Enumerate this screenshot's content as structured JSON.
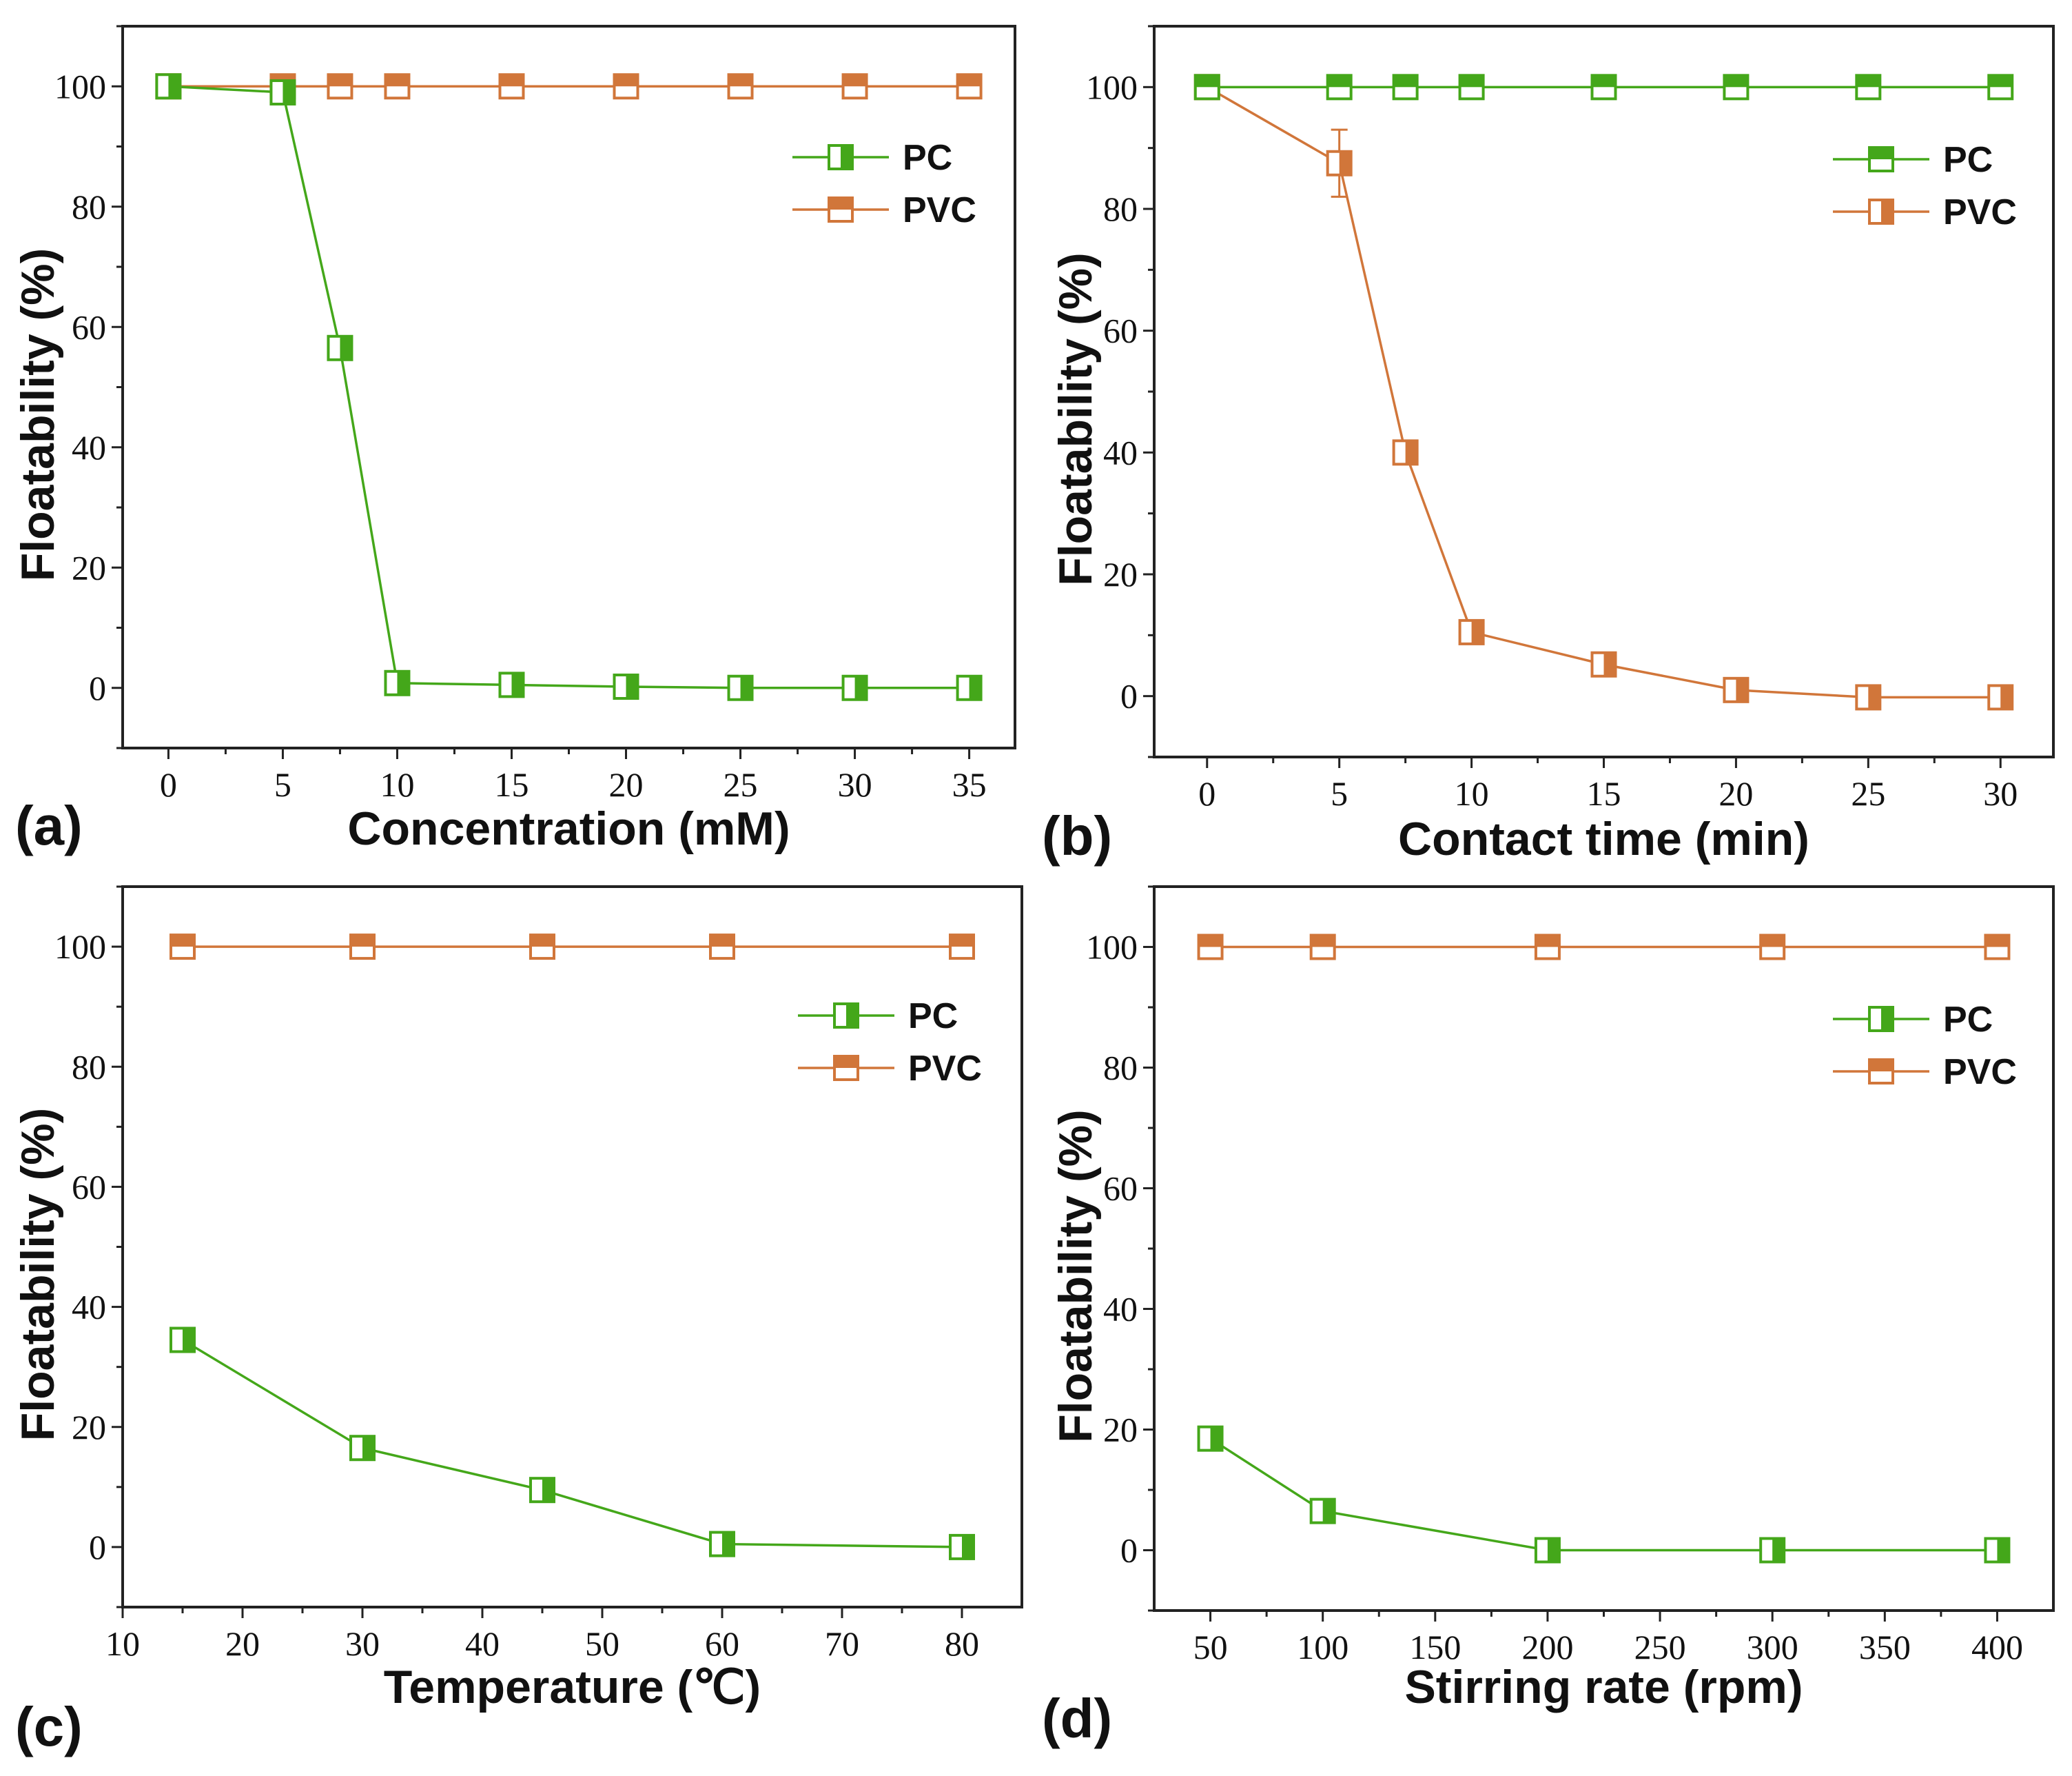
{
  "colors": {
    "pc": "#44a71a",
    "pvc": "#d1763a",
    "axis": "#222222",
    "background": "#ffffff"
  },
  "chart_data": [
    {
      "id": "a",
      "type": "line",
      "panel_label": "(a)",
      "xlabel": "Concentration (mM)",
      "ylabel": "Floatability (%)",
      "xlim": [
        -2,
        37
      ],
      "ylim": [
        -10,
        110
      ],
      "xticks": [
        0,
        5,
        10,
        15,
        20,
        25,
        30,
        35
      ],
      "yticks": [
        0,
        20,
        40,
        60,
        80,
        100
      ],
      "legend_position": "top-right",
      "legend_order": [
        "PC",
        "PVC"
      ],
      "series": [
        {
          "name": "PC",
          "marker": "half-left",
          "x": [
            0,
            5,
            7.5,
            10,
            15,
            20,
            25,
            30,
            35
          ],
          "y": [
            100,
            99,
            56.5,
            0.8,
            0.5,
            0.2,
            0,
            0,
            0
          ]
        },
        {
          "name": "PVC",
          "marker": "half-top",
          "x": [
            0,
            5,
            7.5,
            10,
            15,
            20,
            25,
            30,
            35
          ],
          "y": [
            100,
            100,
            100,
            100,
            100,
            100,
            100,
            100,
            100
          ]
        }
      ]
    },
    {
      "id": "b",
      "type": "line",
      "panel_label": "(b)",
      "xlabel": "Contact time (min)",
      "ylabel": "Floatability (%)",
      "xlim": [
        -2,
        32
      ],
      "ylim": [
        -10,
        110
      ],
      "xticks": [
        0,
        5,
        10,
        15,
        20,
        25,
        30
      ],
      "yticks": [
        0,
        20,
        40,
        60,
        80,
        100
      ],
      "legend_position": "top-right",
      "legend_order": [
        "PC",
        "PVC"
      ],
      "series": [
        {
          "name": "PVC",
          "marker": "half-left",
          "x": [
            0,
            5,
            7.5,
            10,
            15,
            20,
            25,
            30
          ],
          "y": [
            100,
            87.5,
            40,
            10.5,
            5.2,
            1,
            -0.2,
            -0.2
          ],
          "errors": [
            0,
            5.5,
            0,
            0,
            0,
            0,
            0,
            0
          ]
        },
        {
          "name": "PC",
          "marker": "half-top",
          "x": [
            0,
            5,
            7.5,
            10,
            15,
            20,
            25,
            30
          ],
          "y": [
            100,
            100,
            100,
            100,
            100,
            100,
            100,
            100
          ]
        }
      ]
    },
    {
      "id": "c",
      "type": "line",
      "panel_label": "(c)",
      "xlabel": "Temperature (℃)",
      "ylabel": "Floatability (%)",
      "xlim": [
        10,
        85
      ],
      "ylim": [
        -10,
        110
      ],
      "xticks": [
        10,
        20,
        30,
        40,
        50,
        60,
        70,
        80
      ],
      "yticks": [
        0,
        20,
        40,
        60,
        80,
        100
      ],
      "legend_position": "top-right",
      "legend_order": [
        "PC",
        "PVC"
      ],
      "series": [
        {
          "name": "PC",
          "marker": "half-left",
          "x": [
            15,
            30,
            45,
            60,
            80
          ],
          "y": [
            34.5,
            16.5,
            9.5,
            0.5,
            0
          ]
        },
        {
          "name": "PVC",
          "marker": "half-top",
          "x": [
            15,
            30,
            45,
            60,
            80
          ],
          "y": [
            100,
            100,
            100,
            100,
            100
          ]
        }
      ]
    },
    {
      "id": "d",
      "type": "line",
      "panel_label": "(d)",
      "xlabel": "Stirring rate (rpm)",
      "ylabel": "Floatability (%)",
      "xlim": [
        25,
        425
      ],
      "ylim": [
        -10,
        110
      ],
      "xticks": [
        50,
        100,
        150,
        200,
        250,
        300,
        350,
        400
      ],
      "yticks": [
        0,
        20,
        40,
        60,
        80,
        100
      ],
      "legend_position": "top-right",
      "legend_order": [
        "PC",
        "PVC"
      ],
      "series": [
        {
          "name": "PC",
          "marker": "half-left",
          "x": [
            50,
            100,
            200,
            300,
            400
          ],
          "y": [
            18.5,
            6.5,
            0,
            0,
            0
          ]
        },
        {
          "name": "PVC",
          "marker": "half-top",
          "x": [
            50,
            100,
            200,
            300,
            400
          ],
          "y": [
            100,
            100,
            100,
            100,
            100
          ]
        }
      ]
    }
  ]
}
